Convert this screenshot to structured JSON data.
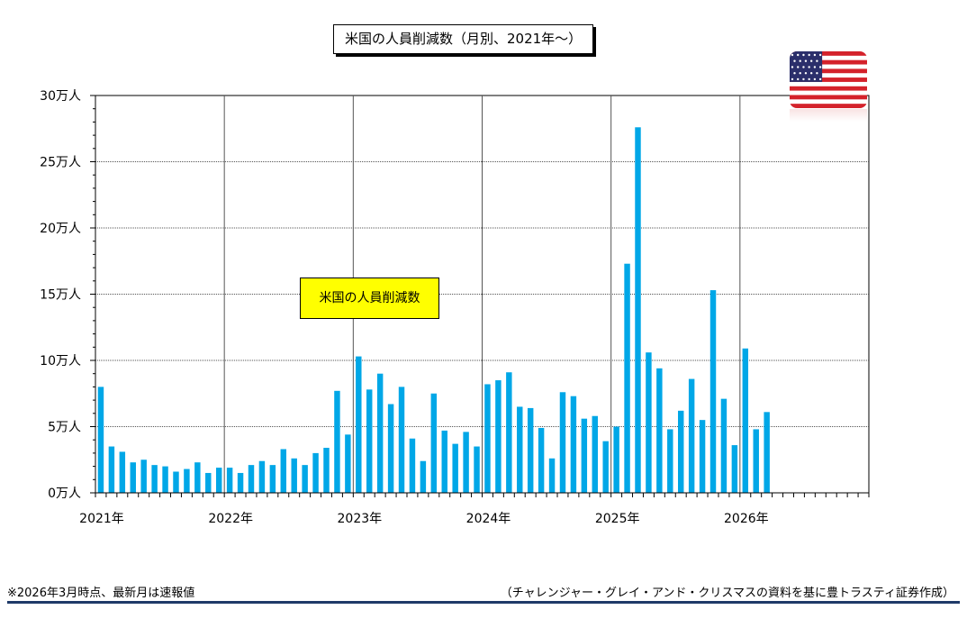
{
  "colors": {
    "bar": "#00a7e7",
    "legend_bg": "#ffff00",
    "rule": "#1f3a68"
  },
  "icons": {
    "flag": "us-flag-icon"
  },
  "chart_data": {
    "type": "bar",
    "title": "米国の人員削減数（月別、2021年〜）",
    "legend": [
      "米国の人員削減数"
    ],
    "legend_placement": "center-left",
    "grid": true,
    "ylim": [
      0,
      300000
    ],
    "y_ticks": [
      0,
      50000,
      100000,
      150000,
      200000,
      250000,
      300000
    ],
    "y_tick_labels": [
      "0万人",
      "5万人",
      "10万人",
      "15万人",
      "20万人",
      "25万人",
      "30万人"
    ],
    "x_tick_labels": [
      "2021年",
      "2022年",
      "2023年",
      "2024年",
      "2025年",
      "2026年"
    ],
    "months_total": 72,
    "series": [
      {
        "name": "米国の人員削減数",
        "values": [
          80000,
          35000,
          31000,
          23000,
          25000,
          21000,
          20000,
          16000,
          18000,
          23000,
          15000,
          19000,
          19000,
          15000,
          21000,
          24000,
          21000,
          33000,
          26000,
          21000,
          30000,
          34000,
          77000,
          44000,
          103000,
          78000,
          90000,
          67000,
          80000,
          41000,
          24000,
          75000,
          47000,
          37000,
          46000,
          35000,
          82000,
          85000,
          91000,
          65000,
          64000,
          49000,
          26000,
          76000,
          73000,
          56000,
          58000,
          39000,
          50000,
          173000,
          276000,
          106000,
          94000,
          48000,
          62000,
          86000,
          55000,
          153000,
          71000,
          36000,
          109000,
          48000,
          61000
        ]
      }
    ]
  },
  "footnote_left": "※2026年3月時点、最新月は速報値",
  "footnote_right": "（チャレンジャー・グレイ・アンド・クリスマスの資料を基に豊トラスティ証券作成）"
}
